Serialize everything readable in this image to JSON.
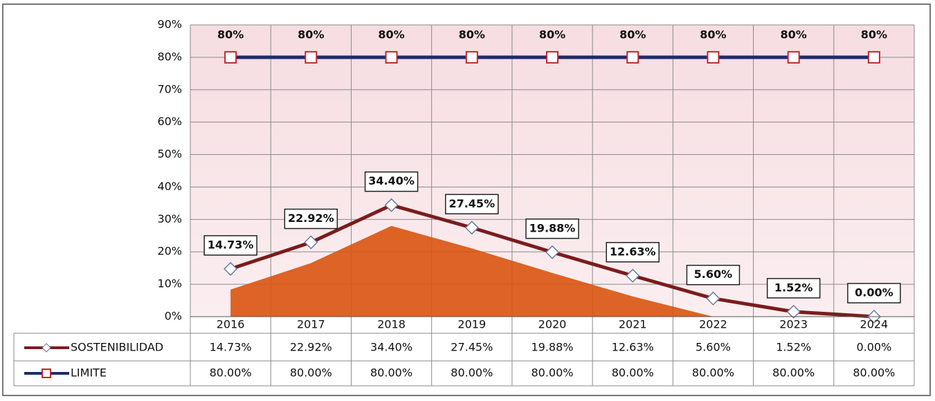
{
  "chart_data": {
    "type": "line",
    "categories": [
      "2016",
      "2017",
      "2018",
      "2019",
      "2020",
      "2021",
      "2022",
      "2023",
      "2024"
    ],
    "series": [
      {
        "name": "SOSTENIBILIDAD",
        "color": "#7a1c1c",
        "marker": "diamond",
        "values": [
          14.73,
          22.92,
          34.4,
          27.45,
          19.88,
          12.63,
          5.6,
          1.52,
          0.0
        ],
        "value_labels": [
          "14.73%",
          "22.92%",
          "34.40%",
          "27.45%",
          "19.88%",
          "12.63%",
          "5.60%",
          "1.52%",
          "0.00%"
        ],
        "table_labels": [
          "14.73%",
          "22.92%",
          "34.40%",
          "27.45%",
          "19.88%",
          "12.63%",
          "5.60%",
          "1.52%",
          "0.00%"
        ]
      },
      {
        "name": "LIMITE",
        "color": "#1f2a6b",
        "marker": "square",
        "values": [
          80,
          80,
          80,
          80,
          80,
          80,
          80,
          80,
          80
        ],
        "value_labels": [
          "80%",
          "80%",
          "80%",
          "80%",
          "80%",
          "80%",
          "80%",
          "80%",
          "80%"
        ],
        "table_labels": [
          "80.00%",
          "80.00%",
          "80.00%",
          "80.00%",
          "80.00%",
          "80.00%",
          "80.00%",
          "80.00%",
          "80.00%"
        ]
      }
    ],
    "ylim": [
      0,
      90
    ],
    "yticks": [
      {
        "value": 0,
        "label": "0%"
      },
      {
        "value": 10,
        "label": "10%"
      },
      {
        "value": 20,
        "label": "20%"
      },
      {
        "value": 30,
        "label": "30%"
      },
      {
        "value": 40,
        "label": "40%"
      },
      {
        "value": 50,
        "label": "50%"
      },
      {
        "value": 60,
        "label": "60%"
      },
      {
        "value": 70,
        "label": "70%"
      },
      {
        "value": 80,
        "label": "80%"
      },
      {
        "value": 90,
        "label": "90%"
      }
    ],
    "grid": true,
    "area_color": "#d9540f"
  }
}
